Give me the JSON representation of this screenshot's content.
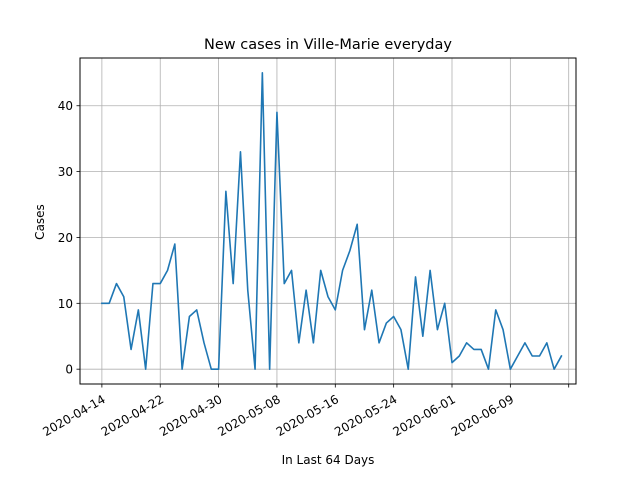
{
  "chart_data": {
    "type": "line",
    "title": "New cases in Ville-Marie everyday",
    "xlabel": "In Last 64 Days",
    "ylabel": "Cases",
    "x_start": "2020-04-14",
    "x_end": "2020-06-16",
    "xlim": [
      "2020-04-11",
      "2020-06-18"
    ],
    "ylim": [
      -2.25,
      47.25
    ],
    "x_ticks": [
      "2020-04-14",
      "2020-04-22",
      "2020-04-30",
      "2020-05-08",
      "2020-05-16",
      "2020-05-24",
      "2020-06-01",
      "2020-06-09",
      "2020-06-17"
    ],
    "x_tick_labels": [
      "2020-04-14",
      "2020-04-22",
      "2020-04-30",
      "2020-05-08",
      "2020-05-16",
      "2020-05-24",
      "2020-06-01",
      "2020-06-09",
      ""
    ],
    "y_ticks": [
      0,
      10,
      20,
      30,
      40
    ],
    "grid": true,
    "series": [
      {
        "color": "#1f77b4",
        "values": [
          10,
          10,
          13,
          11,
          3,
          9,
          0,
          13,
          13,
          15,
          19,
          0,
          8,
          9,
          4,
          0,
          0,
          27,
          13,
          33,
          12,
          0,
          45,
          0,
          39,
          13,
          15,
          4,
          12,
          4,
          15,
          11,
          9,
          15,
          18,
          22,
          6,
          12,
          4,
          7,
          8,
          6,
          0,
          14,
          5,
          15,
          6,
          10,
          1,
          2,
          4,
          3,
          3,
          0,
          9,
          6,
          0,
          2,
          4,
          2,
          2,
          4,
          0,
          2
        ]
      }
    ]
  }
}
